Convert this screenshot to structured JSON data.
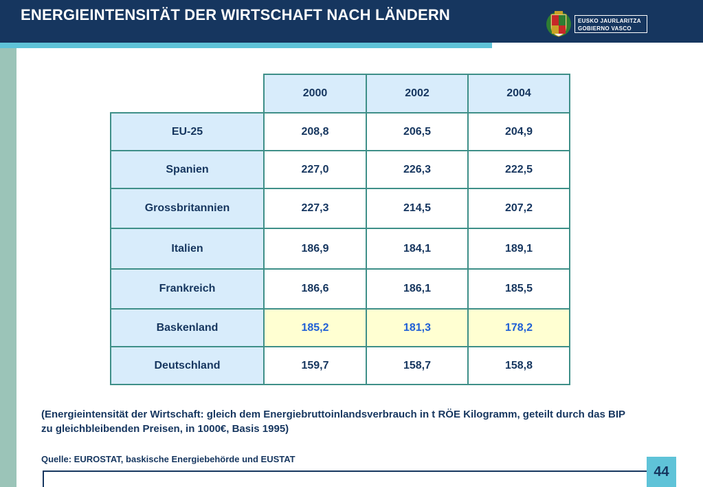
{
  "header": {
    "title": "ENERGIEINTENSITÄT DER WIRTSCHAFT NACH LÄNDERN",
    "logo_line1": "EUSKO JAURLARITZA",
    "logo_line2": "GOBIERNO VASCO"
  },
  "table": {
    "years": [
      "2000",
      "2002",
      "2004"
    ],
    "rows": [
      {
        "label": "EU-25",
        "values": [
          "208,8",
          "206,5",
          "204,9"
        ]
      },
      {
        "label": "Spanien",
        "values": [
          "227,0",
          "226,3",
          "222,5"
        ]
      },
      {
        "label": "Grossbritannien",
        "values": [
          "227,3",
          "214,5",
          "207,2"
        ]
      },
      {
        "label": "Italien",
        "values": [
          "186,9",
          "184,1",
          "189,1"
        ]
      },
      {
        "label": "Frankreich",
        "values": [
          "186,6",
          "186,1",
          "185,5"
        ]
      },
      {
        "label": "Baskenland",
        "values": [
          "185,2",
          "181,3",
          "178,2"
        ]
      },
      {
        "label": "Deutschland",
        "values": [
          "159,7",
          "158,7",
          "158,8"
        ]
      }
    ]
  },
  "note": "(Energieintensität der Wirtschaft: gleich dem Energiebruttoinlandsverbrauch in t RÖE Kilogramm, geteilt durch das BIP zu gleichbleibenden Preisen, in 1000€, Basis 1995)",
  "source": "Quelle: EUROSTAT, baskische Energiebehörde und EUSTAT",
  "page_number": "44",
  "colors": {
    "header_bg": "#16365f",
    "accent": "#5fc3d8",
    "left_bar": "#9bc4b8",
    "table_border": "#3e8f88",
    "header_cell_bg": "#d8ecfb",
    "highlight_row_bg": "#ffffd2",
    "highlight_text": "#1f5fd6"
  }
}
